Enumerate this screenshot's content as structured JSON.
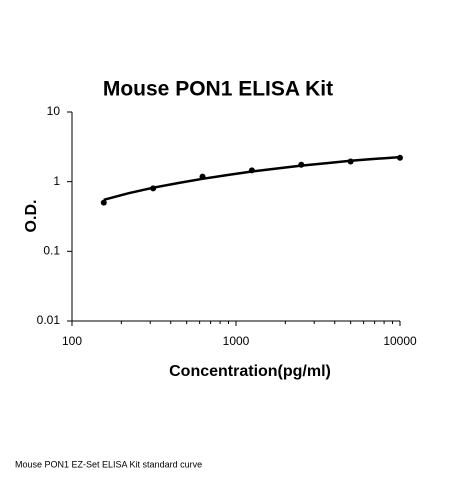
{
  "chart_data": {
    "type": "scatter",
    "title": "Mouse PON1 ELISA Kit",
    "x_label": "Concentration(pg/ml)",
    "y_label": "O.D.",
    "caption": "Mouse PON1 EZ-Set ELISA Kit standard curve",
    "log_x": true,
    "log_y": true,
    "grid": false,
    "xlim": [
      100,
      10000
    ],
    "ylim": [
      0.01,
      10
    ],
    "xticks": [
      100,
      1000,
      10000
    ],
    "xminorticks": [
      200,
      300,
      400,
      500,
      600,
      700,
      800,
      900,
      2000,
      3000,
      4000,
      5000,
      6000,
      7000,
      8000,
      9000
    ],
    "yticks": [
      0.01,
      0.1,
      1,
      10
    ],
    "series": [
      {
        "color": "#000000",
        "x": [
          156.25,
          312.5,
          625,
          1250,
          2500,
          5000,
          10000
        ],
        "values": [
          0.5,
          0.8,
          1.18,
          1.45,
          1.75,
          1.95,
          2.2
        ]
      }
    ],
    "curve": {
      "color": "#000000",
      "x": [
        156.25,
        220,
        312.5,
        450,
        625,
        900,
        1250,
        1800,
        2500,
        3600,
        5000,
        7000,
        10000
      ],
      "values": [
        0.55,
        0.68,
        0.82,
        0.96,
        1.1,
        1.25,
        1.4,
        1.55,
        1.7,
        1.85,
        2.0,
        2.12,
        2.25
      ]
    }
  }
}
